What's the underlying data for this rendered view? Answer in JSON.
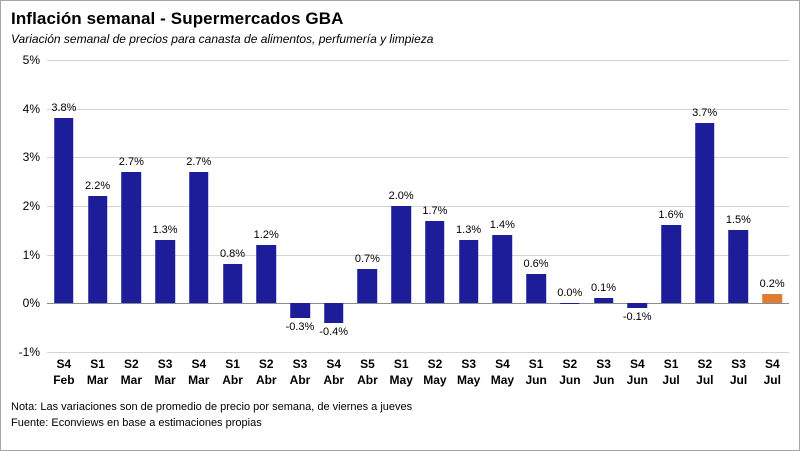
{
  "header": {
    "title": "Inflación semanal - Supermercados GBA",
    "subtitle": "Variación semanal de precios para canasta de alimentos, perfumería y limpieza"
  },
  "footer": {
    "note": "Nota: Las variaciones son de promedio de precio por semana, de viernes a jueves",
    "source": "Fuente: Econviews en base a estimaciones propias"
  },
  "chart_data": {
    "type": "bar",
    "title": "Inflación semanal - Supermercados GBA",
    "subtitle": "Variación semanal de precios para canasta de alimentos, perfumería y limpieza",
    "categories": [
      [
        "S4",
        "Feb"
      ],
      [
        "S1",
        "Mar"
      ],
      [
        "S2",
        "Mar"
      ],
      [
        "S3",
        "Mar"
      ],
      [
        "S4",
        "Mar"
      ],
      [
        "S1",
        "Abr"
      ],
      [
        "S2",
        "Abr"
      ],
      [
        "S3",
        "Abr"
      ],
      [
        "S4",
        "Abr"
      ],
      [
        "S5",
        "Abr"
      ],
      [
        "S1",
        "May"
      ],
      [
        "S2",
        "May"
      ],
      [
        "S3",
        "May"
      ],
      [
        "S4",
        "May"
      ],
      [
        "S1",
        "Jun"
      ],
      [
        "S2",
        "Jun"
      ],
      [
        "S3",
        "Jun"
      ],
      [
        "S4",
        "Jun"
      ],
      [
        "S1",
        "Jul"
      ],
      [
        "S2",
        "Jul"
      ],
      [
        "S3",
        "Jul"
      ],
      [
        "S4",
        "Jul"
      ]
    ],
    "values": [
      3.8,
      2.2,
      2.7,
      1.3,
      2.7,
      0.8,
      1.2,
      -0.3,
      -0.4,
      0.7,
      2.0,
      1.7,
      1.3,
      1.4,
      0.6,
      0.0,
      0.1,
      -0.1,
      1.6,
      3.7,
      1.5,
      0.2
    ],
    "labels": [
      "3.8%",
      "2.2%",
      "2.7%",
      "1.3%",
      "2.7%",
      "0.8%",
      "1.2%",
      "-0.3%",
      "-0.4%",
      "0.7%",
      "2.0%",
      "1.7%",
      "1.3%",
      "1.4%",
      "0.6%",
      "0.0%",
      "0.1%",
      "-0.1%",
      "1.6%",
      "3.7%",
      "1.5%",
      "0.2%"
    ],
    "bar_color": "#1d1d99",
    "highlight_color": "#e07d35",
    "highlight_index": 21,
    "ylim": [
      -1,
      5
    ],
    "yticks": [
      5,
      4,
      3,
      2,
      1,
      0,
      -1
    ],
    "ytick_labels": [
      "5%",
      "4%",
      "3%",
      "2%",
      "1%",
      "0%",
      "-1%"
    ],
    "grid": true,
    "legend_position": "none"
  }
}
